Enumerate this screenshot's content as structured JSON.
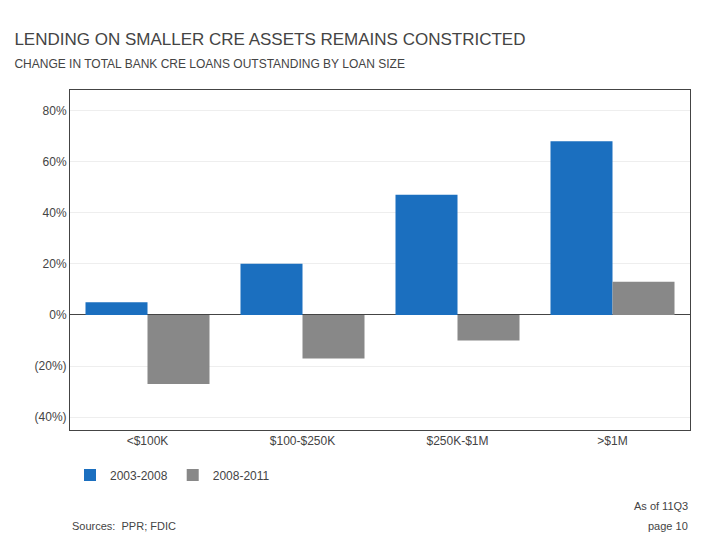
{
  "chart_data": {
    "type": "bar",
    "title": "LENDING ON SMALLER CRE ASSETS REMAINS CONSTRICTED",
    "subtitle": "CHANGE IN TOTAL BANK CRE LOANS OUTSTANDING BY LOAN SIZE",
    "categories": [
      "<$100K",
      "$100-$250K",
      "$250K-$1M",
      ">$1M"
    ],
    "series": [
      {
        "name": "2003-2008",
        "color": "#1B6FBF",
        "values": [
          5,
          20,
          47,
          68
        ]
      },
      {
        "name": "2008-2011",
        "color": "#888888",
        "values": [
          -27,
          -17,
          -10,
          13
        ]
      }
    ],
    "ylim": [
      -45,
      88
    ],
    "yticks": [
      {
        "value": -40,
        "label": "(40%)"
      },
      {
        "value": -20,
        "label": "(20%)"
      },
      {
        "value": 0,
        "label": "0%"
      },
      {
        "value": 20,
        "label": "20%"
      },
      {
        "value": 40,
        "label": "40%"
      },
      {
        "value": 60,
        "label": "60%"
      },
      {
        "value": 80,
        "label": "80%"
      }
    ],
    "grid": true,
    "legend": "bottom left",
    "annotations": [
      "Sources:  PPR; FDIC",
      "As of 11Q3",
      "page 10"
    ]
  }
}
